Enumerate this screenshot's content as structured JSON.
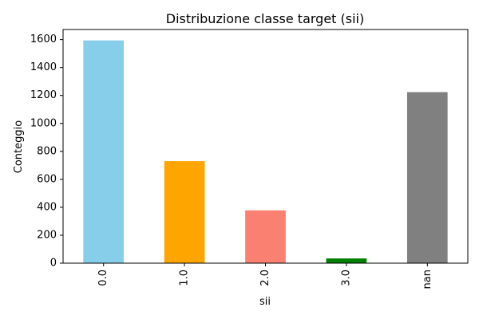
{
  "chart_data": {
    "type": "bar",
    "title": "Distribuzione classe target (sii)",
    "xlabel": "sii",
    "ylabel": "Conteggio",
    "categories": [
      "0.0",
      "1.0",
      "2.0",
      "3.0",
      "nan"
    ],
    "values": [
      1594,
      730,
      378,
      34,
      1224
    ],
    "colors": [
      "#87ceeb",
      "#ffa500",
      "#fa8072",
      "#008000",
      "#808080"
    ],
    "yticks": [
      0,
      200,
      400,
      600,
      800,
      1000,
      1200,
      1400,
      1600
    ],
    "ylim": [
      0,
      1672
    ],
    "grid": false,
    "legend": "none"
  }
}
